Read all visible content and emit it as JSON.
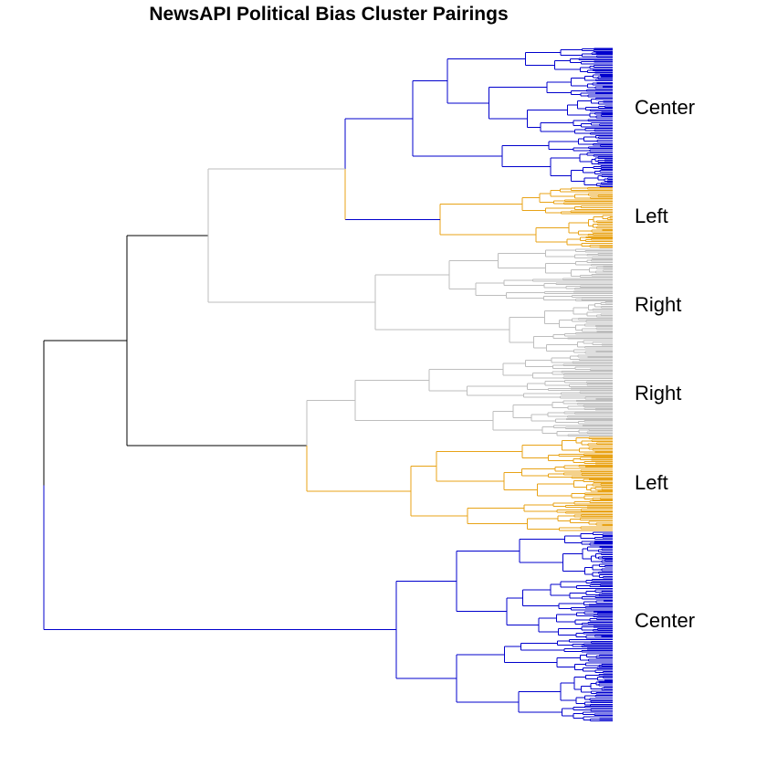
{
  "title": "NewsAPI Political Bias Cluster Pairings",
  "colors": {
    "center": "#0000CD",
    "left": "#E8A317",
    "right": "#BEBEBE",
    "trunk": "#000000"
  },
  "clusters": [
    {
      "label": "Center",
      "color_key": "center"
    },
    {
      "label": "Left",
      "color_key": "left"
    },
    {
      "label": "Right",
      "color_key": "right"
    },
    {
      "label": "Right",
      "color_key": "right"
    },
    {
      "label": "Left",
      "color_key": "left"
    },
    {
      "label": "Center",
      "color_key": "center"
    }
  ]
}
